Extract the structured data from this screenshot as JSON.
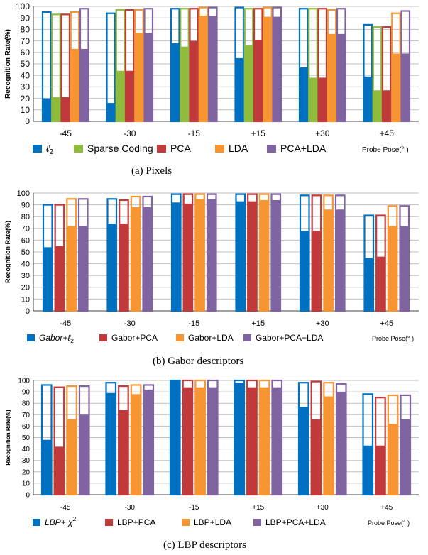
{
  "colors": {
    "l2": "#0070c0",
    "sparse": "#8fbc3c",
    "pca": "#c0393b",
    "lda": "#f79532",
    "pcalda": "#8064a2"
  },
  "chart_data": [
    {
      "type": "bar",
      "caption": "(a)  Pixels",
      "ylabel": "Recognition Rate(%)",
      "xlabel": "Probe Pose(° )",
      "categories": [
        "-45",
        "-30",
        "-15",
        "+15",
        "+30",
        "+45"
      ],
      "ylim": [
        0,
        100
      ],
      "yticks": [
        0,
        10,
        20,
        30,
        40,
        50,
        60,
        70,
        80,
        90,
        100
      ],
      "bar_style": "filled value with hollow outline of second value",
      "series": [
        {
          "name": "ℓ2",
          "label_main": "ℓ",
          "label_sub": "2",
          "color_key": "l2",
          "values": [
            20,
            16,
            68,
            55,
            47,
            39
          ],
          "outline_values": [
            95,
            94,
            98,
            99,
            98,
            84
          ]
        },
        {
          "name": "Sparse Coding",
          "color_key": "sparse",
          "values": [
            21,
            44,
            65,
            66,
            38,
            27
          ],
          "outline_values": [
            93,
            97,
            98,
            98,
            98,
            82
          ]
        },
        {
          "name": "PCA",
          "color_key": "pca",
          "values": [
            21,
            44,
            70,
            71,
            38,
            27
          ],
          "outline_values": [
            93,
            97,
            98,
            98,
            98,
            82
          ]
        },
        {
          "name": "LDA",
          "color_key": "lda",
          "values": [
            63,
            77,
            92,
            91,
            76,
            59
          ],
          "outline_values": [
            95,
            97,
            99,
            99,
            97,
            94
          ]
        },
        {
          "name": "PCA+LDA",
          "color_key": "pcalda",
          "values": [
            63,
            77,
            92,
            91,
            76,
            59
          ],
          "outline_values": [
            98,
            98,
            99,
            99,
            98,
            96
          ]
        }
      ]
    },
    {
      "type": "bar",
      "caption": "(b)  Gabor descriptors",
      "ylabel": "Recognition Rate(%)",
      "xlabel": "Probe Pose(° )",
      "categories": [
        "-45",
        "-30",
        "-15",
        "+15",
        "+30",
        "+45"
      ],
      "ylim": [
        0,
        100
      ],
      "yticks": [
        0,
        10,
        20,
        30,
        40,
        50,
        60,
        70,
        80,
        90,
        100
      ],
      "series": [
        {
          "name": "Gabor+ℓ2",
          "label_main": "Gabor+ℓ",
          "label_sub": "2",
          "color_key": "l2",
          "values": [
            54,
            74,
            92,
            93,
            68,
            45
          ],
          "outline_values": [
            90,
            95,
            99,
            99,
            98,
            81
          ]
        },
        {
          "name": "Gabor+PCA",
          "color_key": "pca",
          "values": [
            55,
            74,
            91,
            93,
            68,
            46
          ],
          "outline_values": [
            90,
            94,
            99,
            99,
            98,
            81
          ]
        },
        {
          "name": "Gabor+LDA",
          "color_key": "lda",
          "values": [
            72,
            88,
            95,
            94,
            86,
            72
          ],
          "outline_values": [
            95,
            97,
            99,
            99,
            98,
            89
          ]
        },
        {
          "name": "Gabor+PCA+LDA",
          "color_key": "pcalda",
          "values": [
            72,
            88,
            95,
            94,
            86,
            72
          ],
          "outline_values": [
            95,
            97,
            99,
            99,
            98,
            89
          ]
        }
      ]
    },
    {
      "type": "bar",
      "caption": "(c)  LBP descriptors",
      "ylabel": "Recognition Rate(%)",
      "xlabel": "Probe Pose(° )",
      "categories": [
        "-45",
        "-30",
        "-15",
        "+15",
        "+30",
        "+45"
      ],
      "ylim": [
        0,
        100
      ],
      "yticks": [
        0,
        10,
        20,
        30,
        40,
        50,
        60,
        70,
        80,
        90,
        100
      ],
      "series": [
        {
          "name": "LBP+χ2",
          "label_main": "LBP+ χ",
          "label_sup": "2",
          "color_key": "l2",
          "values": [
            48,
            89,
            100,
            98,
            77,
            43
          ],
          "outline_values": [
            96,
            98,
            100,
            100,
            98,
            88
          ]
        },
        {
          "name": "LBP+PCA",
          "color_key": "pca",
          "values": [
            42,
            74,
            94,
            94,
            66,
            43
          ],
          "outline_values": [
            94,
            95,
            100,
            100,
            99,
            85
          ]
        },
        {
          "name": "LBP+LDA",
          "color_key": "lda",
          "values": [
            66,
            88,
            94,
            94,
            86,
            62
          ],
          "outline_values": [
            95,
            96,
            100,
            100,
            98,
            87
          ]
        },
        {
          "name": "LBP+PCA+LDA",
          "color_key": "pcalda",
          "values": [
            70,
            92,
            94,
            94,
            90,
            66
          ],
          "outline_values": [
            95,
            96,
            100,
            100,
            97,
            87
          ]
        }
      ]
    }
  ]
}
